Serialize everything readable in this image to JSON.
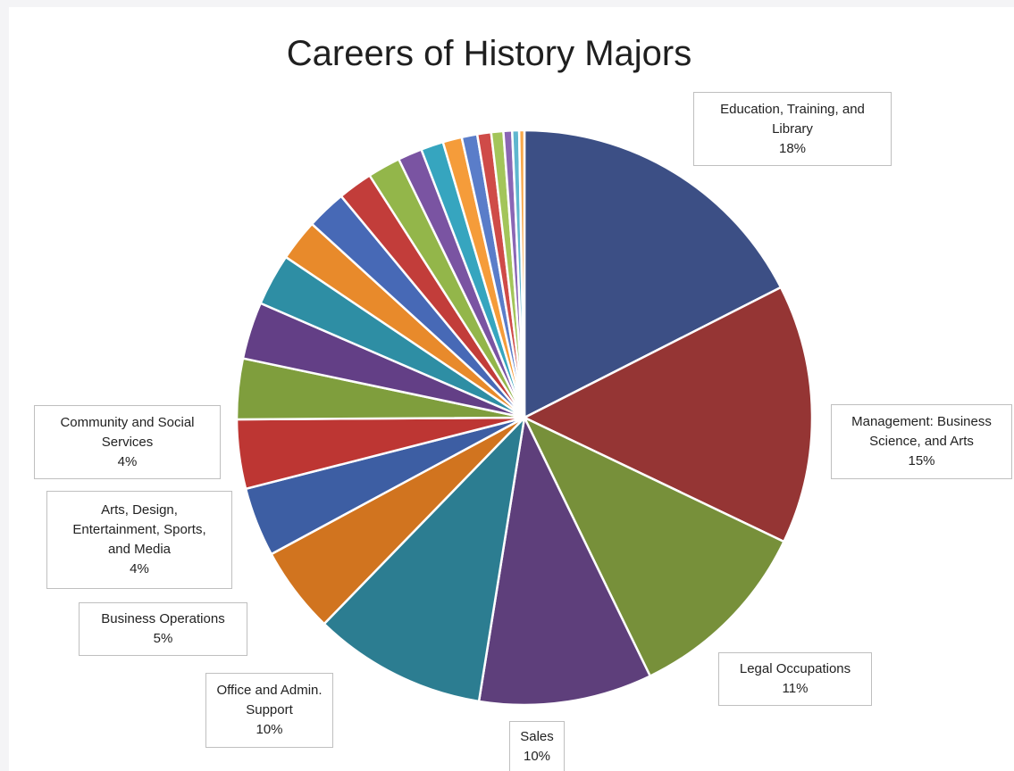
{
  "chart_data": {
    "type": "pie",
    "title": "Careers of History Majors",
    "slices": [
      {
        "label": "Education, Training, and Library",
        "value": 18,
        "pct_label": "18%",
        "color": "#3c4f85"
      },
      {
        "label": "Management: Business Science, and Arts",
        "value": 15,
        "pct_label": "15%",
        "color": "#953534"
      },
      {
        "label": "Legal Occupations",
        "value": 11,
        "pct_label": "11%",
        "color": "#77903a"
      },
      {
        "label": "Sales",
        "value": 10,
        "pct_label": "10%",
        "color": "#5e3f7b"
      },
      {
        "label": "Office and Admin. Support",
        "value": 10,
        "pct_label": "10%",
        "color": "#2c7d91"
      },
      {
        "label": "Business Operations",
        "value": 5,
        "pct_label": "5%",
        "color": "#d1741f"
      },
      {
        "label": "Arts, Design, Entertainment, Sports, and Media",
        "value": 4,
        "pct_label": "4%",
        "color": "#3d5ea3"
      },
      {
        "label": "Community and Social Services",
        "value": 4,
        "pct_label": "4%",
        "color": "#bd3633"
      },
      {
        "label": "",
        "value": 3.5,
        "pct_label": "",
        "color": "#7f9e3d"
      },
      {
        "label": "",
        "value": 3.3,
        "pct_label": "",
        "color": "#633f86"
      },
      {
        "label": "",
        "value": 3.0,
        "pct_label": "",
        "color": "#2e8ea4"
      },
      {
        "label": "",
        "value": 2.4,
        "pct_label": "",
        "color": "#e88a2b"
      },
      {
        "label": "",
        "value": 2.3,
        "pct_label": "",
        "color": "#4769b6"
      },
      {
        "label": "",
        "value": 2.0,
        "pct_label": "",
        "color": "#c23d3a"
      },
      {
        "label": "",
        "value": 1.9,
        "pct_label": "",
        "color": "#93b64a"
      },
      {
        "label": "",
        "value": 1.4,
        "pct_label": "",
        "color": "#7a54a2"
      },
      {
        "label": "",
        "value": 1.3,
        "pct_label": "",
        "color": "#36a5bf"
      },
      {
        "label": "",
        "value": 1.1,
        "pct_label": "",
        "color": "#f59c3a"
      },
      {
        "label": "",
        "value": 0.9,
        "pct_label": "",
        "color": "#5a7dc9"
      },
      {
        "label": "",
        "value": 0.8,
        "pct_label": "",
        "color": "#cf4b48"
      },
      {
        "label": "",
        "value": 0.7,
        "pct_label": "",
        "color": "#a3c55a"
      },
      {
        "label": "",
        "value": 0.5,
        "pct_label": "",
        "color": "#8a66b5"
      },
      {
        "label": "",
        "value": 0.4,
        "pct_label": "",
        "color": "#5fb6cf"
      },
      {
        "label": "",
        "value": 0.3,
        "pct_label": "",
        "color": "#f8a84a"
      }
    ],
    "legend": "none",
    "data_labels": "callout-boxes"
  },
  "labels": [
    {
      "lines": [
        "Education, Training, and",
        "Library",
        "18%"
      ]
    },
    {
      "lines": [
        "Management: Business",
        "Science, and Arts",
        "15%"
      ]
    },
    {
      "lines": [
        "Legal Occupations",
        "11%"
      ]
    },
    {
      "lines": [
        "Sales",
        "10%"
      ]
    },
    {
      "lines": [
        "Office and Admin.",
        "Support",
        "10%"
      ]
    },
    {
      "lines": [
        "Business Operations",
        "5%"
      ]
    },
    {
      "lines": [
        "Arts, Design,",
        "Entertainment, Sports,",
        "and Media",
        "4%"
      ]
    },
    {
      "lines": [
        "Community and Social",
        "Services",
        "4%"
      ]
    }
  ]
}
